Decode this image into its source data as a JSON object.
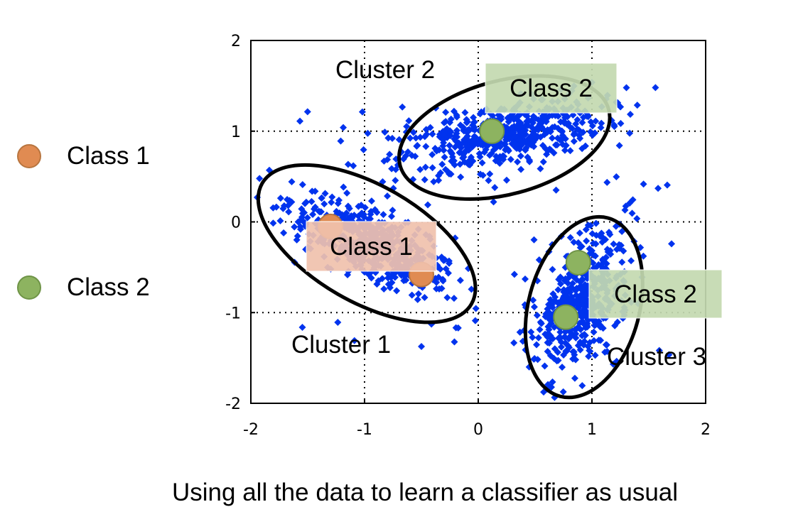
{
  "chart_data": {
    "type": "scatter",
    "xlim": [
      -2,
      2
    ],
    "ylim": [
      -2,
      2
    ],
    "x_ticks": [
      -2,
      -1,
      0,
      1,
      2
    ],
    "y_ticks": [
      -2,
      -1,
      0,
      1,
      2
    ],
    "x_tick_labels": [
      "-2",
      "-1",
      "0",
      "1",
      "2"
    ],
    "y_tick_labels": [
      "-2",
      "-1",
      "0",
      "1",
      "2"
    ],
    "grid": "dotted at integer ticks",
    "point_color": "#0033ee",
    "clusters": [
      {
        "name": "Cluster 1",
        "center": [
          -0.95,
          -0.25
        ],
        "approx_points": 520
      },
      {
        "name": "Cluster 2",
        "center": [
          0.2,
          0.95
        ],
        "approx_points": 520
      },
      {
        "name": "Cluster 3",
        "center": [
          0.9,
          -0.9
        ],
        "approx_points": 480
      }
    ],
    "labeled_points": [
      {
        "class": "Class 1",
        "x": -1.3,
        "y": -0.05,
        "color": "#e08b52"
      },
      {
        "class": "Class 1",
        "x": -0.5,
        "y": -0.58,
        "color": "#e08b52"
      },
      {
        "class": "Class 2",
        "x": 0.12,
        "y": 1.0,
        "color": "#8db360"
      },
      {
        "class": "Class 2",
        "x": 0.88,
        "y": -0.45,
        "color": "#8db360"
      },
      {
        "class": "Class 2",
        "x": 0.77,
        "y": -1.05,
        "color": "#8db360"
      }
    ],
    "cluster_labels": [
      "Cluster 1",
      "Cluster 2",
      "Cluster 3"
    ],
    "label_boxes": [
      {
        "text": "Class 1",
        "fill": "#f0c1ac"
      },
      {
        "text": "Class 2",
        "fill": "#c3d9b0"
      },
      {
        "text": "Class 2",
        "fill": "#c3d9b0"
      }
    ]
  },
  "legend": {
    "items": [
      {
        "label": "Class 1",
        "color": "#e08b52"
      },
      {
        "label": "Class 2",
        "color": "#8db360"
      }
    ]
  },
  "caption": "Using all the data to learn a classifier as usual"
}
